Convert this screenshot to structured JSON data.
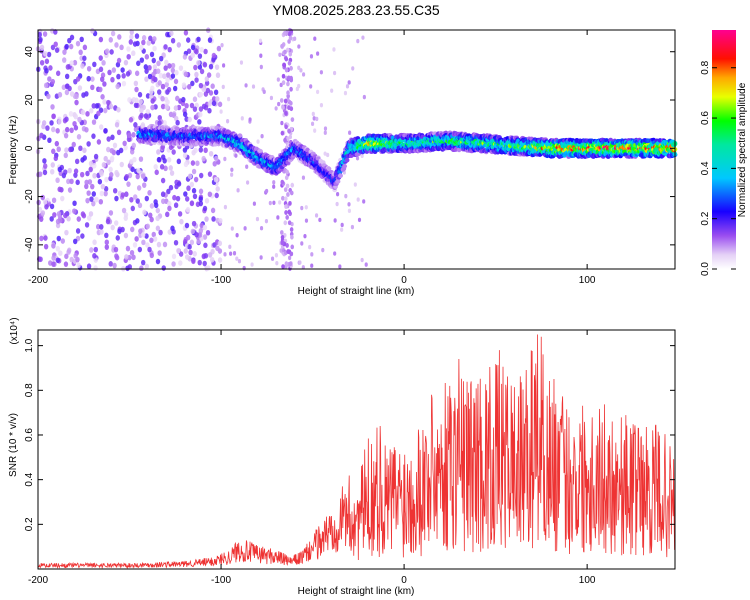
{
  "figure": {
    "title": "YM08.2025.283.23.55.C35"
  },
  "chart_data": [
    {
      "type": "heatmap",
      "xlabel": "Height of straight line (km)",
      "ylabel": "Frequency (Hz)",
      "xlim": [
        -200,
        148
      ],
      "ylim": [
        -50,
        49
      ],
      "x_ticks": [
        "-200",
        "-100",
        "0",
        "100"
      ],
      "x_tick_values": [
        -200,
        -100,
        0,
        100
      ],
      "y_ticks": [
        "40",
        "20",
        "0",
        "-20",
        "-40"
      ],
      "y_tick_values": [
        40,
        20,
        0,
        -20,
        -40
      ],
      "colorbar": {
        "label": "Normalized spectral amplitude",
        "range": [
          0,
          0.95
        ],
        "ticks": [
          "0.8",
          "0.6",
          "0.4",
          "0.2",
          "0.0"
        ],
        "tick_values": [
          0.8,
          0.6,
          0.4,
          0.2,
          0.0
        ]
      },
      "features": {
        "noise_band_x_range": [
          -200,
          -100
        ],
        "noise_amplitude": 0.12,
        "spike_x": -64,
        "signal_track": [
          {
            "x": -145,
            "freq": 6,
            "amp": 0.35
          },
          {
            "x": -120,
            "freq": 5,
            "amp": 0.3
          },
          {
            "x": -100,
            "freq": 5,
            "amp": 0.35
          },
          {
            "x": -90,
            "freq": 2,
            "amp": 0.45
          },
          {
            "x": -80,
            "freq": -4,
            "amp": 0.4
          },
          {
            "x": -70,
            "freq": -8,
            "amp": 0.35
          },
          {
            "x": -60,
            "freq": 0,
            "amp": 0.35
          },
          {
            "x": -50,
            "freq": -5,
            "amp": 0.3
          },
          {
            "x": -38,
            "freq": -14,
            "amp": 0.25
          },
          {
            "x": -30,
            "freq": 0,
            "amp": 0.5
          },
          {
            "x": -20,
            "freq": 2,
            "amp": 0.75
          },
          {
            "x": 0,
            "freq": 2,
            "amp": 0.55
          },
          {
            "x": 25,
            "freq": 3,
            "amp": 0.55
          },
          {
            "x": 60,
            "freq": 1,
            "amp": 0.6
          },
          {
            "x": 80,
            "freq": 0,
            "amp": 0.8
          },
          {
            "x": 148,
            "freq": 0,
            "amp": 0.85
          }
        ]
      }
    },
    {
      "type": "line",
      "ylabel": "SNR (10 * v/v)",
      "y_multiplier": "(x10⁴)",
      "xlabel": "Height of straight line (km)",
      "xlim": [
        -200,
        148
      ],
      "ylim": [
        0,
        1.07
      ],
      "x_ticks": [
        "-200",
        "-100",
        "0",
        "100"
      ],
      "x_tick_values": [
        -200,
        -100,
        0,
        100
      ],
      "y_ticks": [
        "1.0",
        "0.8",
        "0.6",
        "0.4",
        "0.2"
      ],
      "y_tick_values": [
        1.0,
        0.8,
        0.6,
        0.4,
        0.2
      ],
      "color": "#ee3333",
      "series": [
        {
          "name": "SNR",
          "x": [
            -200,
            -150,
            -120,
            -105,
            -95,
            -90,
            -85,
            -80,
            -70,
            -62,
            -55,
            -48,
            -40,
            -35,
            -30,
            -25,
            -20,
            -15,
            -10,
            -5,
            0,
            10,
            20,
            30,
            40,
            50,
            60,
            65,
            70,
            75,
            80,
            90,
            100,
            110,
            120,
            130,
            140,
            148
          ],
          "base": [
            0.015,
            0.015,
            0.02,
            0.03,
            0.05,
            0.08,
            0.07,
            0.06,
            0.05,
            0.03,
            0.05,
            0.1,
            0.16,
            0.2,
            0.23,
            0.22,
            0.32,
            0.35,
            0.3,
            0.32,
            0.32,
            0.38,
            0.45,
            0.48,
            0.48,
            0.5,
            0.48,
            0.46,
            0.55,
            0.55,
            0.48,
            0.4,
            0.42,
            0.4,
            0.38,
            0.35,
            0.35,
            0.28
          ],
          "peaks": [
            {
              "x": -13,
              "y": 0.64
            },
            {
              "x": 15,
              "y": 0.78
            },
            {
              "x": 25,
              "y": 0.82
            },
            {
              "x": 30,
              "y": 0.94
            },
            {
              "x": 45,
              "y": 0.8
            },
            {
              "x": 52,
              "y": 0.98
            },
            {
              "x": 73,
              "y": 1.05
            },
            {
              "x": 75,
              "y": 1.04
            },
            {
              "x": 128,
              "y": 0.63
            }
          ]
        }
      ]
    }
  ],
  "colors": {
    "line": "#ee3333",
    "axis": "#000000"
  }
}
